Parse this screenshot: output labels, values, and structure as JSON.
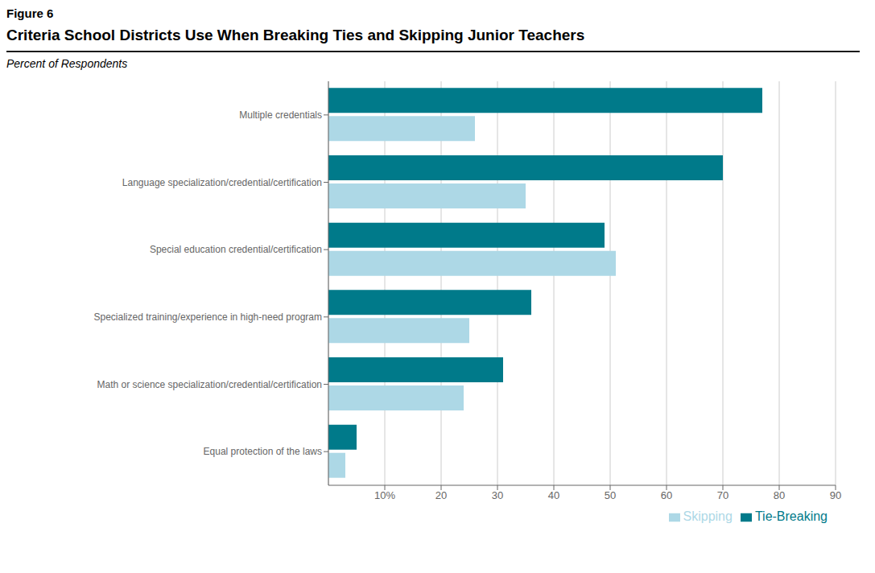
{
  "chart_data": {
    "type": "bar",
    "orientation": "horizontal",
    "annotations": [
      "Figure 6"
    ],
    "title": "Criteria School Districts Use When Breaking Ties and Skipping Junior Teachers",
    "xlabel": "Percent of Respondents",
    "categories": [
      "Equal protection of the laws",
      "Math or science specialization/credential/certification",
      "Specialized training/experience in high-need program",
      "Special education credential/certification",
      "Language specialization/credential/certification",
      "Multiple credentials"
    ],
    "series": [
      {
        "name": "Tie-Breaking",
        "color": "#007A8A",
        "values": [
          5,
          31,
          36,
          49,
          70,
          77
        ]
      },
      {
        "name": "Skipping",
        "color": "#ADD8E6",
        "values": [
          3,
          24,
          25,
          51,
          35,
          26
        ]
      }
    ],
    "xlim": [
      0,
      90
    ],
    "xticks": [
      {
        "value": 10,
        "label": "10%"
      },
      20,
      30,
      40,
      50,
      60,
      70,
      80,
      90
    ],
    "grid": true,
    "legend": "lower right"
  }
}
